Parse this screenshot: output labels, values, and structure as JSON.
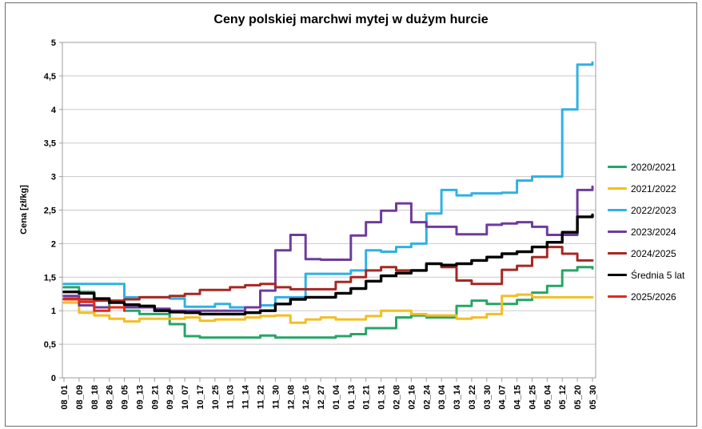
{
  "chart_data": {
    "type": "line",
    "title": "Ceny polskiej marchwi mytej w dużym hurcie",
    "ylabel": "Cena [zł/kg]",
    "ylim": [
      0,
      5
    ],
    "y_step": 0.5,
    "y_tick_labels": [
      "0",
      "0,5",
      "1",
      "1,5",
      "2",
      "2,5",
      "3",
      "3,5",
      "4",
      "4,5",
      "5"
    ],
    "grid": "horizontal",
    "legend_position": "right",
    "x_tick_labels": [
      "08_01",
      "08_09",
      "08_18",
      "08_26",
      "09_05",
      "09_13",
      "09_21",
      "09_29",
      "10_07",
      "10_17",
      "10_25",
      "11_03",
      "11_14",
      "11_22",
      "11_30",
      "12_08",
      "12_16",
      "12_27",
      "01_04",
      "01_13",
      "01_21",
      "01_31",
      "02_08",
      "02_16",
      "02_24",
      "03_04",
      "03_14",
      "03_22",
      "03_30",
      "04_07",
      "04_15",
      "04_25",
      "05_04",
      "05_12",
      "05_20",
      "05_30"
    ],
    "series": [
      {
        "name": "2020/2021",
        "color": "#27A567",
        "values": [
          1.35,
          1.28,
          1.18,
          1.05,
          1.0,
          0.95,
          0.95,
          0.8,
          0.62,
          0.6,
          0.6,
          0.6,
          0.6,
          0.63,
          0.6,
          0.6,
          0.6,
          0.6,
          0.62,
          0.65,
          0.74,
          0.74,
          0.9,
          0.93,
          0.9,
          0.9,
          1.07,
          1.15,
          1.1,
          1.1,
          1.16,
          1.27,
          1.37,
          1.6,
          1.65,
          1.63
        ]
      },
      {
        "name": "2021/2022",
        "color": "#F2BE24",
        "values": [
          1.12,
          0.97,
          0.93,
          0.88,
          0.84,
          0.88,
          0.88,
          0.88,
          0.9,
          0.85,
          0.87,
          0.87,
          0.9,
          0.92,
          0.93,
          0.82,
          0.87,
          0.9,
          0.87,
          0.87,
          0.92,
          1.0,
          1.0,
          0.95,
          0.93,
          0.93,
          0.88,
          0.9,
          0.95,
          1.22,
          1.24,
          1.2,
          1.2,
          1.2,
          1.2,
          1.2
        ]
      },
      {
        "name": "2022/2023",
        "color": "#30B1E4",
        "values": [
          1.4,
          1.4,
          1.4,
          1.4,
          1.2,
          1.2,
          1.2,
          1.18,
          1.06,
          1.06,
          1.1,
          1.05,
          1.05,
          1.08,
          1.2,
          1.2,
          1.55,
          1.55,
          1.55,
          1.6,
          1.9,
          1.88,
          1.95,
          2.0,
          2.45,
          2.8,
          2.72,
          2.75,
          2.75,
          2.76,
          2.94,
          3.0,
          3.0,
          4.0,
          4.67,
          4.7
        ]
      },
      {
        "name": "2023/2024",
        "color": "#6E3C9C",
        "values": [
          1.22,
          1.08,
          1.05,
          1.05,
          1.05,
          1.05,
          1.03,
          1.0,
          1.0,
          1.0,
          1.0,
          1.0,
          1.05,
          1.3,
          1.9,
          2.13,
          1.77,
          1.76,
          1.76,
          2.12,
          2.32,
          2.49,
          2.6,
          2.32,
          2.25,
          2.25,
          2.14,
          2.14,
          2.28,
          2.3,
          2.32,
          2.25,
          2.13,
          2.13,
          2.8,
          2.85
        ]
      },
      {
        "name": "2024/2025",
        "color": "#A62823",
        "values": [
          1.18,
          1.17,
          1.15,
          1.15,
          1.17,
          1.2,
          1.2,
          1.22,
          1.25,
          1.31,
          1.31,
          1.35,
          1.38,
          1.4,
          1.35,
          1.32,
          1.32,
          1.32,
          1.43,
          1.5,
          1.6,
          1.65,
          1.6,
          1.6,
          1.7,
          1.65,
          1.45,
          1.4,
          1.4,
          1.61,
          1.67,
          1.8,
          1.95,
          1.85,
          1.75,
          1.75
        ]
      },
      {
        "name": "Średnia 5 lat",
        "color": "#000000",
        "values": [
          1.28,
          1.26,
          1.18,
          1.12,
          1.09,
          1.07,
          1.0,
          0.98,
          0.97,
          0.95,
          0.95,
          0.95,
          0.97,
          1.0,
          1.1,
          1.17,
          1.2,
          1.2,
          1.26,
          1.33,
          1.44,
          1.52,
          1.56,
          1.6,
          1.7,
          1.68,
          1.7,
          1.75,
          1.8,
          1.85,
          1.88,
          1.95,
          2.02,
          2.17,
          2.4,
          2.43
        ]
      },
      {
        "name": "2025/2026",
        "color": "#E5281B",
        "values": [
          1.17,
          1.13,
          1.0,
          1.05,
          1.0,
          null,
          null,
          null,
          null,
          null,
          null,
          null,
          null,
          null,
          null,
          null,
          null,
          null,
          null,
          null,
          null,
          null,
          null,
          null,
          null,
          null,
          null,
          null,
          null,
          null,
          null,
          null,
          null,
          null,
          null,
          null
        ]
      }
    ]
  }
}
